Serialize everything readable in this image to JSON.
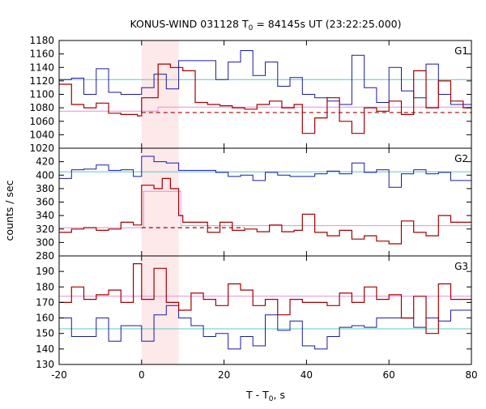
{
  "chart_data": {
    "type": "line",
    "title": {
      "main": "KONUS-WIND 031128 T",
      "sub": "0",
      "rest": " = 84145s UT (23:22:25.000)"
    },
    "xlabel": {
      "main": "T - T",
      "sub": "0",
      "rest": ", s"
    },
    "ylabel": "counts / sec",
    "xlim": [
      -20,
      80
    ],
    "xticks": [
      -20,
      0,
      20,
      40,
      60,
      80
    ],
    "highlight_interval": [
      0,
      9
    ],
    "panels": [
      {
        "name": "G1",
        "ylim": [
          1020,
          1180
        ],
        "yticks": [
          1020,
          1040,
          1060,
          1080,
          1100,
          1120,
          1140,
          1160,
          1180
        ],
        "bg_level": {
          "blue": 1122,
          "pink": 1081
        },
        "blue_steps": [
          -20,
          1122,
          -17,
          1124,
          -14,
          1100,
          -11,
          1138,
          -8,
          1103,
          -5,
          1100,
          0,
          1110,
          3,
          1130,
          6,
          1108,
          9,
          1150,
          18,
          1122,
          21,
          1148,
          24,
          1165,
          27,
          1128,
          30,
          1148,
          33,
          1112,
          36,
          1125,
          39,
          1100,
          42,
          1095,
          45,
          1090,
          48,
          1085,
          51,
          1158,
          54,
          1110,
          57,
          1088,
          60,
          1140,
          63,
          1105,
          66,
          1095,
          69,
          1145,
          72,
          1100,
          75,
          1085
        ],
        "red_steps": [
          -20,
          1115,
          -17,
          1085,
          -14,
          1080,
          -11,
          1087,
          -8,
          1072,
          -5,
          1070,
          -1,
          1068,
          0,
          1095,
          4,
          1145,
          7,
          1140,
          10,
          1135,
          13,
          1088,
          16,
          1085,
          19,
          1083,
          22,
          1080,
          25,
          1078,
          28,
          1085,
          31,
          1090,
          34,
          1080,
          37,
          1085,
          39,
          1042,
          42,
          1065,
          45,
          1095,
          48,
          1060,
          51,
          1042,
          54,
          1080,
          57,
          1075,
          60,
          1090,
          63,
          1070,
          66,
          1135,
          69,
          1080,
          72,
          1120,
          75,
          1090,
          78,
          1080
        ],
        "pink_steps": [
          -20,
          1075,
          0,
          1075,
          4,
          1081,
          80,
          1081
        ],
        "red_dashed": {
          "x": [
            0,
            80
          ],
          "y": 1073
        }
      },
      {
        "name": "G2",
        "ylim": [
          280,
          440
        ],
        "yticks": [
          280,
          300,
          320,
          340,
          360,
          380,
          400,
          420
        ],
        "bg_level": {
          "blue": 405,
          "pink": 324
        },
        "blue_steps": [
          -20,
          395,
          -17,
          408,
          -14,
          409,
          -11,
          415,
          -8,
          407,
          -5,
          408,
          -2,
          398,
          0,
          428,
          3,
          420,
          6,
          418,
          9,
          407,
          18,
          404,
          21,
          398,
          24,
          400,
          27,
          392,
          30,
          404,
          33,
          400,
          36,
          398,
          39,
          398,
          42,
          402,
          45,
          406,
          48,
          402,
          51,
          418,
          54,
          404,
          57,
          408,
          60,
          382,
          63,
          402,
          66,
          408,
          69,
          402,
          72,
          404,
          75,
          392
        ],
        "red_steps": [
          -20,
          315,
          -17,
          320,
          -14,
          322,
          -11,
          318,
          -8,
          320,
          -5,
          330,
          -2,
          326,
          0,
          385,
          3,
          380,
          5,
          395,
          7,
          380,
          9,
          340,
          10,
          330,
          13,
          330,
          16,
          315,
          19,
          330,
          22,
          318,
          25,
          320,
          28,
          316,
          31,
          326,
          34,
          316,
          37,
          318,
          39,
          342,
          42,
          315,
          45,
          310,
          48,
          318,
          51,
          305,
          54,
          310,
          57,
          302,
          60,
          298,
          63,
          332,
          66,
          315,
          69,
          310,
          72,
          340,
          75,
          330
        ],
        "pink_steps": [
          -20,
          322,
          0,
          322,
          0.5,
          376,
          9,
          376,
          9.5,
          325,
          80,
          325
        ],
        "red_dashed": {
          "x": [
            0,
            25
          ],
          "y": 322
        }
      },
      {
        "name": "G3",
        "ylim": [
          130,
          200
        ],
        "yticks": [
          130,
          140,
          150,
          160,
          170,
          180,
          190
        ],
        "bg_level": {
          "blue": 153,
          "pink": 174
        },
        "blue_steps": [
          -20,
          160,
          -17,
          148,
          -14,
          148,
          -11,
          160,
          -8,
          145,
          -5,
          155,
          0,
          145,
          3,
          162,
          6,
          168,
          9,
          160,
          12,
          155,
          15,
          148,
          18,
          150,
          21,
          140,
          24,
          148,
          27,
          142,
          30,
          162,
          33,
          152,
          36,
          158,
          39,
          142,
          42,
          140,
          45,
          148,
          48,
          154,
          51,
          155,
          54,
          154,
          57,
          160,
          60,
          160,
          63,
          160,
          66,
          154,
          69,
          160,
          72,
          158,
          75,
          165
        ],
        "red_steps": [
          -20,
          170,
          -17,
          180,
          -14,
          172,
          -11,
          175,
          -8,
          178,
          -5,
          170,
          -2,
          195,
          0,
          172,
          3,
          192,
          6,
          170,
          9,
          165,
          12,
          176,
          15,
          172,
          18,
          168,
          21,
          182,
          24,
          178,
          27,
          168,
          30,
          172,
          33,
          162,
          36,
          172,
          39,
          170,
          42,
          170,
          45,
          168,
          48,
          176,
          51,
          170,
          54,
          180,
          57,
          172,
          60,
          175,
          63,
          160,
          66,
          174,
          69,
          150,
          72,
          182,
          75,
          172
        ],
        "pink_steps": [
          -20,
          174,
          80,
          174
        ],
        "red_dashed": null
      }
    ]
  }
}
